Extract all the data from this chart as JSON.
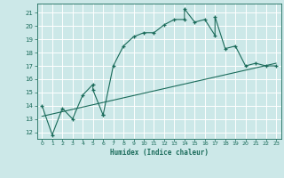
{
  "xlabel": "Humidex (Indice chaleur)",
  "ylabel": "",
  "background_color": "#cce8e8",
  "grid_color": "#ffffff",
  "line_color": "#1a6b5a",
  "xlim": [
    -0.5,
    23.5
  ],
  "ylim": [
    11.5,
    21.7
  ],
  "xticks": [
    0,
    1,
    2,
    3,
    4,
    5,
    6,
    7,
    8,
    9,
    10,
    11,
    12,
    13,
    14,
    15,
    16,
    17,
    18,
    19,
    20,
    21,
    22,
    23
  ],
  "yticks": [
    12,
    13,
    14,
    15,
    16,
    17,
    18,
    19,
    20,
    21
  ],
  "main_x": [
    0,
    1,
    2,
    3,
    4,
    5,
    5,
    6,
    6,
    7,
    8,
    9,
    10,
    11,
    12,
    13,
    14,
    14,
    15,
    16,
    17,
    17,
    18,
    19,
    20,
    21,
    22,
    23
  ],
  "main_y": [
    14.0,
    11.8,
    13.8,
    13.0,
    14.8,
    15.6,
    15.2,
    13.3,
    13.3,
    17.0,
    18.5,
    19.2,
    19.5,
    19.5,
    20.1,
    20.5,
    20.5,
    21.3,
    20.3,
    20.5,
    19.3,
    20.7,
    18.3,
    18.5,
    17.0,
    17.2,
    17.0,
    17.0
  ],
  "trend_x": [
    0,
    23
  ],
  "trend_y": [
    13.2,
    17.2
  ]
}
